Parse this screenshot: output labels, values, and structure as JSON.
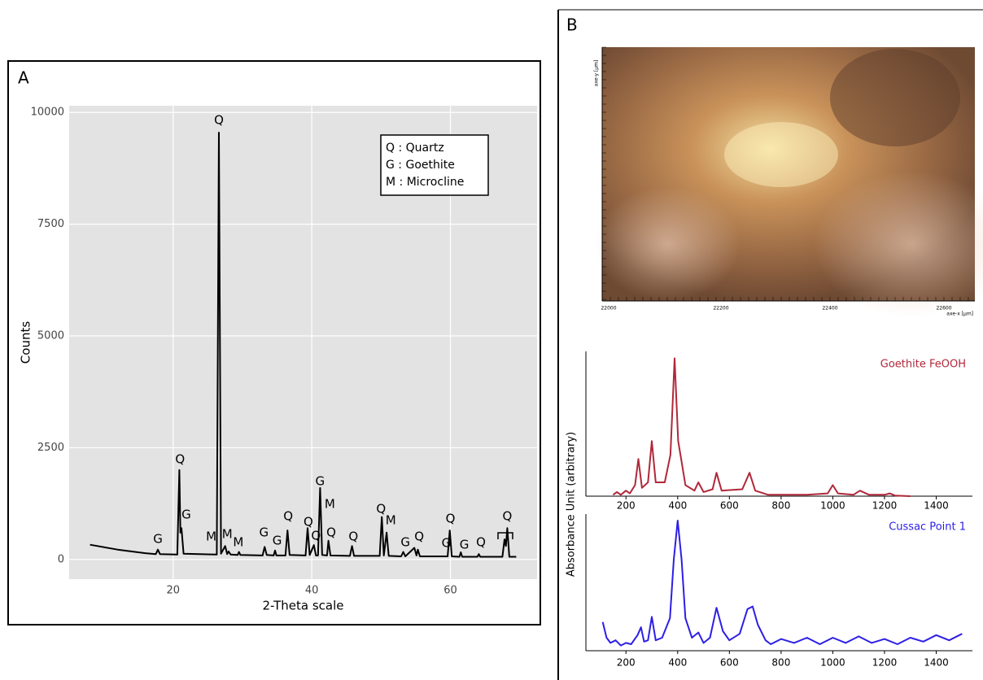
{
  "panels": {
    "a": "A",
    "b": "B"
  },
  "micrograph": {
    "x_labels": [
      "22000",
      "22200",
      "22400",
      "22600"
    ],
    "x_axis_label": "axe-x [µm]",
    "y_axis_label": "axe-y [µm]"
  },
  "chart_data": [
    {
      "type": "line",
      "xlabel": "2-Theta scale",
      "ylabel": "Counts",
      "x": [
        8,
        12,
        16,
        17.5,
        17.8,
        18.1,
        20.6,
        20.9,
        21.05,
        21.2,
        21.5,
        26.3,
        26.6,
        26.9,
        27.5,
        27.8,
        28,
        28.3,
        29.3,
        29.5,
        29.7,
        32.9,
        33.2,
        33.5,
        34.5,
        34.7,
        34.9,
        36.2,
        36.5,
        36.8,
        39.1,
        39.4,
        39.7,
        40.3,
        40.6,
        40.9,
        41.2,
        41.5,
        42.2,
        42.4,
        42.7,
        45.5,
        45.8,
        46.1,
        49.8,
        50.1,
        50.4,
        50.8,
        51.1,
        52.9,
        53.2,
        53.5,
        54.8,
        55.1,
        55.3,
        55.6,
        59.6,
        59.9,
        60.2,
        61.3,
        61.5,
        61.7,
        63.9,
        64.1,
        64.3,
        67.5,
        67.8,
        68.0,
        68.2,
        68.5,
        69.5
      ],
      "series": [
        {
          "color": "#000000",
          "values": [
            330,
            220,
            140,
            120,
            220,
            120,
            110,
            2000,
            600,
            700,
            130,
            110,
            9550,
            130,
            300,
            120,
            180,
            110,
            100,
            170,
            100,
            90,
            280,
            100,
            90,
            200,
            90,
            90,
            650,
            100,
            90,
            700,
            100,
            320,
            90,
            90,
            1600,
            100,
            90,
            420,
            90,
            80,
            300,
            80,
            80,
            950,
            90,
            600,
            80,
            70,
            170,
            70,
            260,
            90,
            220,
            70,
            70,
            650,
            70,
            60,
            160,
            60,
            60,
            120,
            60,
            60,
            450,
            300,
            700,
            60,
            60
          ]
        }
      ],
      "xlim": [
        5,
        72.5
      ],
      "ylim": [
        -440,
        10150
      ],
      "xticks": [
        20,
        40,
        60
      ],
      "yticks": [
        0,
        2500,
        5000,
        7500,
        10000
      ],
      "grid": true,
      "legend_box": [
        "Q : Quartz",
        "G : Goethite",
        "M : Microcline"
      ],
      "annotations": [
        {
          "text": "G",
          "x": 17.8,
          "y": 455
        },
        {
          "text": "Q",
          "x": 21,
          "y": 2236
        },
        {
          "text": "G",
          "x": 21.9,
          "y": 1000
        },
        {
          "text": "Q",
          "x": 26.6,
          "y": 9818
        },
        {
          "text": "M",
          "x": 25.5,
          "y": 509
        },
        {
          "text": "M",
          "x": 27.8,
          "y": 564
        },
        {
          "text": "M",
          "x": 29.4,
          "y": 382
        },
        {
          "text": "G",
          "x": 33.1,
          "y": 600
        },
        {
          "text": "G",
          "x": 35,
          "y": 418
        },
        {
          "text": "Q",
          "x": 36.6,
          "y": 964
        },
        {
          "text": "Q",
          "x": 39.5,
          "y": 836
        },
        {
          "text": "Q",
          "x": 40.6,
          "y": 527
        },
        {
          "text": "G",
          "x": 41.2,
          "y": 1745
        },
        {
          "text": "M",
          "x": 42.6,
          "y": 1236
        },
        {
          "text": "Q",
          "x": 42.8,
          "y": 600
        },
        {
          "text": "Q",
          "x": 46,
          "y": 509
        },
        {
          "text": "Q",
          "x": 50,
          "y": 1127
        },
        {
          "text": "M",
          "x": 51.4,
          "y": 873
        },
        {
          "text": "G",
          "x": 53.5,
          "y": 382
        },
        {
          "text": "Q",
          "x": 55.5,
          "y": 509
        },
        {
          "text": "G",
          "x": 59.4,
          "y": 364
        },
        {
          "text": "Q",
          "x": 60,
          "y": 909
        },
        {
          "text": "G",
          "x": 62,
          "y": 327
        },
        {
          "text": "Q",
          "x": 64.4,
          "y": 382
        },
        {
          "text": "Q",
          "x": 68.2,
          "y": 964
        }
      ]
    },
    {
      "type": "line",
      "ylabel": "Absorbance Unit (arbitrary)",
      "x": [
        150,
        165,
        180,
        200,
        215,
        235,
        248,
        262,
        285,
        300,
        315,
        350,
        372,
        388,
        402,
        415,
        430,
        465,
        480,
        500,
        535,
        550,
        570,
        650,
        678,
        700,
        750,
        900,
        980,
        1000,
        1020,
        1080,
        1105,
        1140,
        1200,
        1220,
        1240,
        1300
      ],
      "series": [
        {
          "name": "Goethite FeOOH",
          "color": "#b0283a",
          "values": [
            0.01,
            0.03,
            0.01,
            0.04,
            0.02,
            0.08,
            0.27,
            0.06,
            0.1,
            0.4,
            0.1,
            0.1,
            0.3,
            1.0,
            0.4,
            0.25,
            0.08,
            0.04,
            0.1,
            0.03,
            0.05,
            0.17,
            0.04,
            0.05,
            0.17,
            0.04,
            0.01,
            0.01,
            0.02,
            0.08,
            0.02,
            0.01,
            0.04,
            0.01,
            0.01,
            0.02,
            0.005,
            0
          ]
        }
      ],
      "xlim": [
        45,
        1540
      ],
      "ylim": [
        0,
        1.05
      ],
      "xticks": [
        200,
        400,
        600,
        800,
        1000,
        1200,
        1400
      ]
    },
    {
      "type": "line",
      "x": [
        110,
        125,
        140,
        160,
        180,
        200,
        220,
        245,
        258,
        270,
        285,
        300,
        315,
        340,
        370,
        385,
        400,
        415,
        430,
        455,
        480,
        500,
        525,
        550,
        575,
        600,
        640,
        670,
        690,
        710,
        740,
        760,
        800,
        850,
        900,
        950,
        1000,
        1050,
        1100,
        1150,
        1200,
        1250,
        1300,
        1350,
        1400,
        1450,
        1500
      ],
      "series": [
        {
          "name": "Cussac Point 1",
          "color": "#2d1fe6",
          "values": [
            0.22,
            0.1,
            0.06,
            0.08,
            0.04,
            0.06,
            0.05,
            0.12,
            0.18,
            0.07,
            0.08,
            0.26,
            0.08,
            0.1,
            0.25,
            0.7,
            1.0,
            0.7,
            0.25,
            0.1,
            0.14,
            0.06,
            0.1,
            0.33,
            0.15,
            0.08,
            0.13,
            0.32,
            0.34,
            0.2,
            0.08,
            0.05,
            0.09,
            0.06,
            0.1,
            0.05,
            0.1,
            0.06,
            0.11,
            0.06,
            0.09,
            0.05,
            0.1,
            0.07,
            0.12,
            0.08,
            0.13
          ]
        }
      ],
      "xlim": [
        45,
        1540
      ],
      "ylim": [
        0,
        1.05
      ],
      "xticks": [
        200,
        400,
        600,
        800,
        1000,
        1200,
        1400
      ]
    }
  ]
}
